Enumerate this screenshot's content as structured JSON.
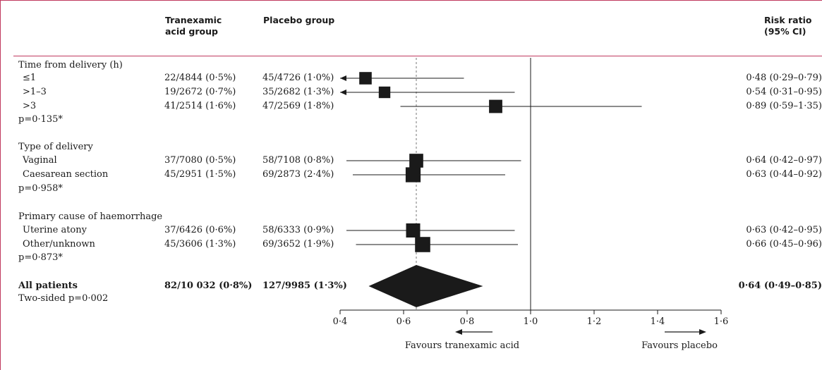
{
  "table": {
    "col_tranexamic": "Tranexamic\nacid group",
    "col_placebo": "Placebo group",
    "col_rr": "Risk ratio\n(95% CI)"
  },
  "rows": [
    {
      "label": "Time from delivery (h)",
      "kind": "heading"
    },
    {
      "label": "≤1",
      "kind": "item",
      "txa": "22/4844 (0·5%)",
      "pla": "45/4726 (1·0%)",
      "rr_text": "0·48 (0·29–0·79)"
    },
    {
      "label": ">1–3",
      "kind": "item",
      "txa": "19/2672 (0·7%)",
      "pla": "35/2682 (1·3%)",
      "rr_text": "0·54 (0·31–0·95)"
    },
    {
      "label": ">3",
      "kind": "item",
      "txa": "41/2514 (1·6%)",
      "pla": "47/2569 (1·8%)",
      "rr_text": "0·89 (0·59–1·35)"
    },
    {
      "label": "p=0·135*",
      "kind": "pvalue"
    },
    {
      "label": "Type of delivery",
      "kind": "heading"
    },
    {
      "label": "Vaginal",
      "kind": "item",
      "txa": "37/7080 (0·5%)",
      "pla": "58/7108 (0·8%)",
      "rr_text": "0·64 (0·42–0·97)"
    },
    {
      "label": "Caesarean section",
      "kind": "item",
      "txa": "45/2951 (1·5%)",
      "pla": "69/2873 (2·4%)",
      "rr_text": "0·63 (0·44–0·92)"
    },
    {
      "label": "p=0·958*",
      "kind": "pvalue"
    },
    {
      "label": "Primary cause of haemorrhage",
      "kind": "heading"
    },
    {
      "label": "Uterine atony",
      "kind": "item",
      "txa": "37/6426 (0·6%)",
      "pla": "58/6333 (0·9%)",
      "rr_text": "0·63 (0·42–0·95)"
    },
    {
      "label": "Other/unknown",
      "kind": "item",
      "txa": "45/3606 (1·3%)",
      "pla": "69/3652 (1·9%)",
      "rr_text": "0·66 (0·45–0·96)"
    },
    {
      "label": "p=0·873*",
      "kind": "pvalue"
    },
    {
      "label": "All patients",
      "kind": "total",
      "txa": "82/10 032 (0·8%)",
      "pla": "127/9985 (1·3%)",
      "rr_text": "0·64 (0·49–0·85)"
    },
    {
      "label": "Two-sided p=0·002",
      "kind": "pvalue"
    }
  ],
  "chart_data": {
    "type": "forest",
    "xlabel": "",
    "xlim": [
      0.4,
      1.6
    ],
    "ticks": [
      {
        "value": 0.4,
        "label": "0·4"
      },
      {
        "value": 0.6,
        "label": "0·6"
      },
      {
        "value": 0.8,
        "label": "0·8"
      },
      {
        "value": 1.0,
        "label": "1·0"
      },
      {
        "value": 1.2,
        "label": "1·2"
      },
      {
        "value": 1.4,
        "label": "1·4"
      },
      {
        "value": 1.6,
        "label": "1·6"
      }
    ],
    "null_line": 1.0,
    "overall_line": 0.64,
    "favours_left": "Favours tranexamic acid",
    "favours_right": "Favours placebo",
    "points": [
      {
        "row": 1,
        "rr": 0.48,
        "lo": 0.29,
        "hi": 0.79,
        "weight": 0.55
      },
      {
        "row": 2,
        "rr": 0.54,
        "lo": 0.31,
        "hi": 0.95,
        "weight": 0.45
      },
      {
        "row": 3,
        "rr": 0.89,
        "lo": 0.59,
        "hi": 1.35,
        "weight": 0.65
      },
      {
        "row": 6,
        "rr": 0.64,
        "lo": 0.42,
        "hi": 0.97,
        "weight": 0.72
      },
      {
        "row": 7,
        "rr": 0.63,
        "lo": 0.44,
        "hi": 0.92,
        "weight": 0.85
      },
      {
        "row": 10,
        "rr": 0.63,
        "lo": 0.42,
        "hi": 0.95,
        "weight": 0.75
      },
      {
        "row": 11,
        "rr": 0.66,
        "lo": 0.45,
        "hi": 0.96,
        "weight": 0.88
      }
    ],
    "overall": {
      "row": 13,
      "rr": 0.64,
      "lo": 0.49,
      "hi": 0.85
    }
  },
  "colors": {
    "border": "#c0395f",
    "ink": "#1a1a1a"
  }
}
